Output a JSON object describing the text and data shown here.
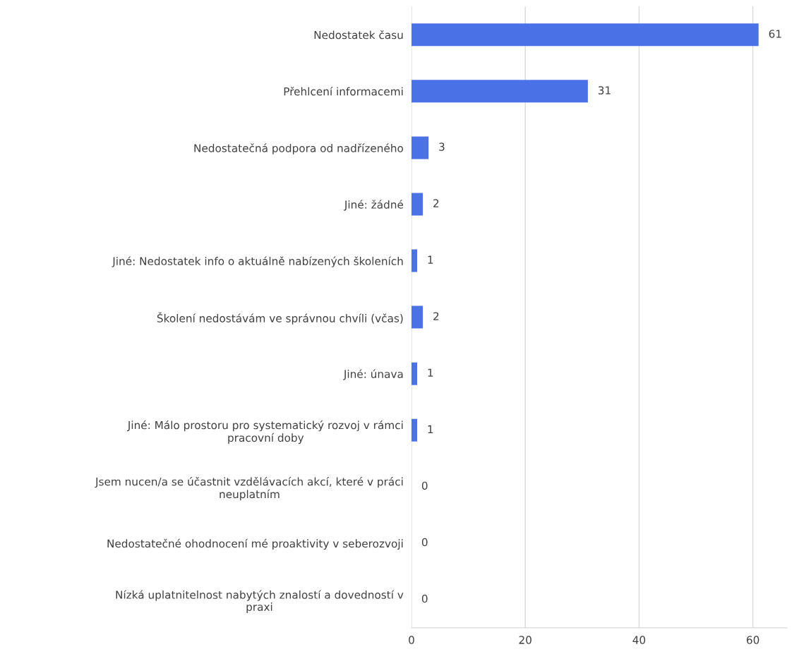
{
  "chart_data": {
    "type": "bar",
    "orientation": "horizontal",
    "categories": [
      "Nedostatek času",
      "Přehlcení informacemi",
      "Nedostatečná podpora od nadřízeného",
      "Jiné: žádné",
      "Jiné: Nedostatek info o aktuálně nabízených školeních",
      "Školení nedostávám ve správnou chvíli (včas)",
      "Jiné: únava",
      "Jiné: Málo prostoru pro systematický rozvoj v rámci\npracovní doby",
      "Jsem nucen/a se účastnit vzdělávacích akcí, které v práci\nneuplatním",
      "Nedostatečné ohodnocení mé proaktivity v seberozvoji",
      "Nízká uplatnitelnost nabytých znalostí a dovedností v\npraxi"
    ],
    "values": [
      61,
      31,
      3,
      2,
      1,
      2,
      1,
      1,
      0,
      0,
      0
    ],
    "color": "#4a72e6",
    "xlim": [
      0,
      66
    ],
    "xticks": [
      0,
      20,
      40,
      60
    ],
    "grid": "x",
    "data_labels": true
  }
}
